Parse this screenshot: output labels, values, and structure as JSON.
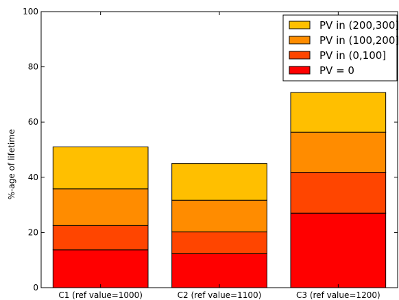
{
  "chart_data": {
    "type": "bar",
    "stacked": true,
    "categories": [
      "C1 (ref value=1000)",
      "C2 (ref value=1100)",
      "C3 (ref value=1200)"
    ],
    "ylabel": "%-age of lifetime",
    "ylim": [
      0,
      100
    ],
    "yticks": [
      0,
      20,
      40,
      60,
      80,
      100
    ],
    "grid": false,
    "legend_position": "top-right",
    "series": [
      {
        "name": "PV = 0",
        "color": "#ff0000",
        "values": [
          13.7,
          12.3,
          27.0
        ]
      },
      {
        "name": "PV in (0,100]",
        "color": "#ff4500",
        "values": [
          8.8,
          7.9,
          14.8
        ]
      },
      {
        "name": "PV in (100,200]",
        "color": "#ff8c00",
        "values": [
          13.3,
          11.5,
          14.5
        ]
      },
      {
        "name": "PV in (200,300]",
        "color": "#ffbf00",
        "values": [
          15.2,
          13.3,
          14.4
        ]
      }
    ]
  }
}
